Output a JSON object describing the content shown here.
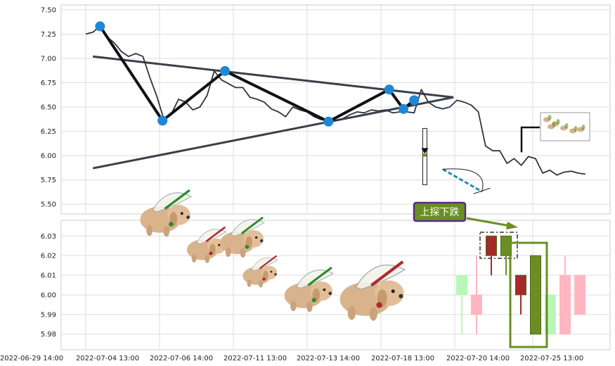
{
  "chart_data": [
    {
      "type": "line",
      "panel": "price",
      "title": "",
      "xlabel": "",
      "ylabel": "",
      "ylim": [
        5.4,
        7.55
      ],
      "y_ticks": [
        "7.50",
        "7.25",
        "7.00",
        "6.75",
        "6.50",
        "6.25",
        "6.00",
        "5.75",
        "5.50"
      ],
      "grid": true,
      "series": [
        {
          "color": "#2f3440",
          "x": [
            0,
            2,
            4,
            6,
            8,
            10,
            12,
            14,
            16,
            18,
            20,
            22,
            24,
            26,
            28,
            30,
            32,
            34,
            36,
            38,
            40,
            42,
            44,
            46,
            48,
            50,
            52,
            54,
            56,
            58,
            60,
            62,
            64,
            66,
            68,
            70,
            72,
            74,
            76,
            78,
            80,
            82,
            84,
            86,
            88,
            90,
            92,
            94,
            96,
            98,
            100,
            102,
            104,
            106,
            108,
            110,
            112,
            114,
            116,
            118,
            120,
            122,
            124,
            126,
            128,
            130,
            132,
            134,
            136,
            138,
            140
          ],
          "values": [
            7.25,
            7.27,
            7.33,
            7.22,
            7.16,
            7.07,
            7.02,
            7.05,
            7.02,
            6.8,
            6.6,
            6.36,
            6.43,
            6.58,
            6.55,
            6.47,
            6.5,
            6.62,
            6.87,
            6.78,
            6.74,
            6.7,
            6.7,
            6.6,
            6.58,
            6.55,
            6.48,
            6.45,
            6.4,
            6.5,
            6.47,
            6.45,
            6.4,
            6.37,
            6.36,
            6.36,
            6.38,
            6.42,
            6.45,
            6.44,
            6.47,
            6.46,
            6.47,
            6.44,
            6.45,
            6.45,
            6.44,
            6.68,
            6.55,
            6.5,
            6.48,
            6.5,
            6.57,
            6.55,
            6.52,
            6.45,
            6.1,
            6.05,
            6.05,
            5.92,
            5.97,
            5.9,
            5.99,
            5.97,
            5.82,
            5.85,
            5.8,
            5.83,
            5.84,
            5.82,
            5.81
          ]
        }
      ],
      "zigzag": {
        "color": "#111111",
        "points": [
          [
            4,
            7.33
          ],
          [
            21.5,
            6.36
          ],
          [
            39,
            6.87
          ],
          [
            68,
            6.35
          ],
          [
            85,
            6.68
          ],
          [
            89,
            6.48
          ],
          [
            92,
            6.57
          ]
        ],
        "markers": [
          [
            4,
            7.33
          ],
          [
            21.5,
            6.36
          ],
          [
            39,
            6.87
          ],
          [
            68,
            6.35
          ],
          [
            85,
            6.68
          ],
          [
            89,
            6.48
          ],
          [
            92,
            6.57
          ]
        ],
        "marker_color": "#1e88d6"
      },
      "trendlines": [
        {
          "color": "#3a3f4a",
          "from": [
            2,
            7.02
          ],
          "to": [
            103,
            6.6
          ]
        },
        {
          "color": "#3a3f4a",
          "from": [
            2,
            5.87
          ],
          "to": [
            103,
            6.6
          ]
        }
      ],
      "dashed_line": {
        "color": "#2a8ab0",
        "from": [
          100,
          5.86
        ],
        "to": [
          111,
          5.63
        ]
      },
      "arc": {
        "color": "#222222",
        "from": [
          100,
          5.86
        ],
        "to": [
          111,
          5.63
        ]
      },
      "small_candle": {
        "x": 95,
        "open": 6.02,
        "close": 5.99,
        "high": 6.28,
        "low": 5.7,
        "body_color": "#6b8e23"
      },
      "x_ticks": []
    },
    {
      "type": "candlestick",
      "panel": "zoom",
      "title": "",
      "xlabel": "",
      "ylabel": "",
      "ylim": [
        5.972,
        6.038
      ],
      "y_ticks": [
        "6.03",
        "6.02",
        "6.01",
        "6.00",
        "5.99",
        "5.98"
      ],
      "grid": true,
      "candles": [
        {
          "x": 0,
          "open": 6.0,
          "close": 6.01,
          "high": 6.01,
          "low": 5.98,
          "color": "#b9f7b9",
          "style": "up"
        },
        {
          "x": 1,
          "open": 6.0,
          "close": 5.99,
          "high": 6.02,
          "low": 5.98,
          "color": "#ffb6c1",
          "style": "down"
        },
        {
          "x": 2,
          "open": 6.03,
          "close": 6.02,
          "high": 6.03,
          "low": 6.01,
          "color": "#a52a2a",
          "style": "down_dark"
        },
        {
          "x": 3,
          "open": 6.02,
          "close": 6.03,
          "high": 6.03,
          "low": 6.01,
          "color": "#6b8e23",
          "style": "up_dark"
        },
        {
          "x": 4,
          "open": 6.01,
          "close": 6.0,
          "high": 6.01,
          "low": 5.99,
          "color": "#a52a2a",
          "style": "down_dark"
        },
        {
          "x": 5,
          "open": 5.98,
          "close": 6.02,
          "high": 6.02,
          "low": 5.98,
          "color": "#6b8e23",
          "style": "up_dark"
        },
        {
          "x": 6,
          "open": 5.98,
          "close": 6.0,
          "high": 6.0,
          "low": 5.98,
          "color": "#b9f7b9",
          "style": "up"
        },
        {
          "x": 7,
          "open": 6.01,
          "close": 5.98,
          "high": 6.02,
          "low": 5.98,
          "color": "#ffb6c1",
          "style": "down"
        },
        {
          "x": 8,
          "open": 6.01,
          "close": 5.99,
          "high": 6.01,
          "low": 5.99,
          "color": "#ffb6c1",
          "style": "down"
        }
      ],
      "x_ticks": [
        "2022-06-29 14:00",
        "2022-07-04 13:00",
        "2022-07-06 14:00",
        "2022-07-11 13:00",
        "2022-07-13 14:00",
        "2022-07-18 13:00",
        "2022-07-20 14:00",
        "2022-07-25 13:00"
      ],
      "annotation": {
        "text": "上探下跌",
        "bg": "#6b8e23",
        "border": "#5b2a86",
        "arrow_color": "#6b8e23"
      },
      "highlight_colors": {
        "box": "#6b8e23",
        "dashed_box": "#333333"
      }
    }
  ],
  "decorations": {
    "dogs_icon": "flying-puppies-sticker",
    "thumbnail_icon": "mini-puppies-thumbnail"
  }
}
